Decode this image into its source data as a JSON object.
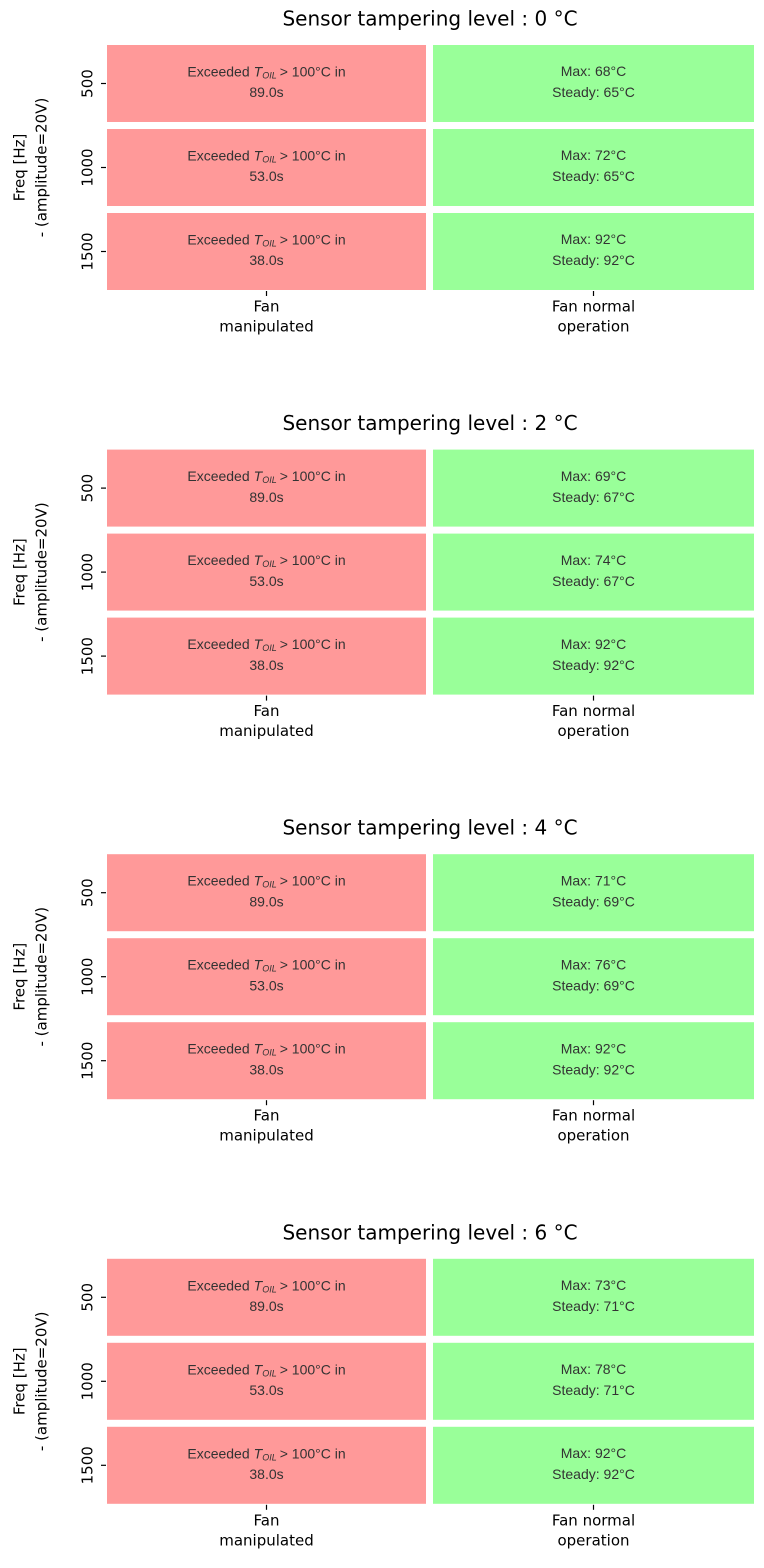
{
  "panels": [
    {
      "title": "Sensor tampering level : 0 °C",
      "y_label": [
        "Freq [Hz]",
        "- (amplitude=20V)"
      ],
      "rows": [
        "500",
        "1000",
        "1500"
      ],
      "columns": [
        {
          "lines": [
            "Fan",
            "manipulated"
          ],
          "color": "#ff9999"
        },
        {
          "lines": [
            "Fan normal",
            "operation"
          ],
          "color": "#99ff99"
        }
      ],
      "cells": [
        [
          {
            "prefix": "Exceeded",
            "symbol": "T",
            "subscript": "OIL",
            "suffix": "> 100°C in",
            "line2": "89.0s"
          },
          {
            "line1": "Max: 68°C",
            "line2": "Steady: 65°C"
          }
        ],
        [
          {
            "prefix": "Exceeded",
            "symbol": "T",
            "subscript": "OIL",
            "suffix": "> 100°C in",
            "line2": "53.0s"
          },
          {
            "line1": "Max: 72°C",
            "line2": "Steady: 65°C"
          }
        ],
        [
          {
            "prefix": "Exceeded",
            "symbol": "T",
            "subscript": "OIL",
            "suffix": "> 100°C in",
            "line2": "38.0s"
          },
          {
            "line1": "Max: 92°C",
            "line2": "Steady: 92°C"
          }
        ]
      ]
    },
    {
      "title": "Sensor tampering level : 2 °C",
      "y_label": [
        "Freq [Hz]",
        "- (amplitude=20V)"
      ],
      "rows": [
        "500",
        "1000",
        "1500"
      ],
      "columns": [
        {
          "lines": [
            "Fan",
            "manipulated"
          ],
          "color": "#ff9999"
        },
        {
          "lines": [
            "Fan normal",
            "operation"
          ],
          "color": "#99ff99"
        }
      ],
      "cells": [
        [
          {
            "prefix": "Exceeded",
            "symbol": "T",
            "subscript": "OIL",
            "suffix": "> 100°C in",
            "line2": "89.0s"
          },
          {
            "line1": "Max: 69°C",
            "line2": "Steady: 67°C"
          }
        ],
        [
          {
            "prefix": "Exceeded",
            "symbol": "T",
            "subscript": "OIL",
            "suffix": "> 100°C in",
            "line2": "53.0s"
          },
          {
            "line1": "Max: 74°C",
            "line2": "Steady: 67°C"
          }
        ],
        [
          {
            "prefix": "Exceeded",
            "symbol": "T",
            "subscript": "OIL",
            "suffix": "> 100°C in",
            "line2": "38.0s"
          },
          {
            "line1": "Max: 92°C",
            "line2": "Steady: 92°C"
          }
        ]
      ]
    },
    {
      "title": "Sensor tampering level : 4 °C",
      "y_label": [
        "Freq [Hz]",
        "- (amplitude=20V)"
      ],
      "rows": [
        "500",
        "1000",
        "1500"
      ],
      "columns": [
        {
          "lines": [
            "Fan",
            "manipulated"
          ],
          "color": "#ff9999"
        },
        {
          "lines": [
            "Fan normal",
            "operation"
          ],
          "color": "#99ff99"
        }
      ],
      "cells": [
        [
          {
            "prefix": "Exceeded",
            "symbol": "T",
            "subscript": "OIL",
            "suffix": "> 100°C in",
            "line2": "89.0s"
          },
          {
            "line1": "Max: 71°C",
            "line2": "Steady: 69°C"
          }
        ],
        [
          {
            "prefix": "Exceeded",
            "symbol": "T",
            "subscript": "OIL",
            "suffix": "> 100°C in",
            "line2": "53.0s"
          },
          {
            "line1": "Max: 76°C",
            "line2": "Steady: 69°C"
          }
        ],
        [
          {
            "prefix": "Exceeded",
            "symbol": "T",
            "subscript": "OIL",
            "suffix": "> 100°C in",
            "line2": "38.0s"
          },
          {
            "line1": "Max: 92°C",
            "line2": "Steady: 92°C"
          }
        ]
      ]
    },
    {
      "title": "Sensor tampering level : 6 °C",
      "y_label": [
        "Freq [Hz]",
        "- (amplitude=20V)"
      ],
      "rows": [
        "500",
        "1000",
        "1500"
      ],
      "columns": [
        {
          "lines": [
            "Fan",
            "manipulated"
          ],
          "color": "#ff9999"
        },
        {
          "lines": [
            "Fan normal",
            "operation"
          ],
          "color": "#99ff99"
        }
      ],
      "cells": [
        [
          {
            "prefix": "Exceeded",
            "symbol": "T",
            "subscript": "OIL",
            "suffix": "> 100°C in",
            "line2": "89.0s"
          },
          {
            "line1": "Max: 73°C",
            "line2": "Steady: 71°C"
          }
        ],
        [
          {
            "prefix": "Exceeded",
            "symbol": "T",
            "subscript": "OIL",
            "suffix": "> 100°C in",
            "line2": "53.0s"
          },
          {
            "line1": "Max: 78°C",
            "line2": "Steady: 71°C"
          }
        ],
        [
          {
            "prefix": "Exceeded",
            "symbol": "T",
            "subscript": "OIL",
            "suffix": "> 100°C in",
            "line2": "38.0s"
          },
          {
            "line1": "Max: 92°C",
            "line2": "Steady: 92°C"
          }
        ]
      ]
    }
  ]
}
